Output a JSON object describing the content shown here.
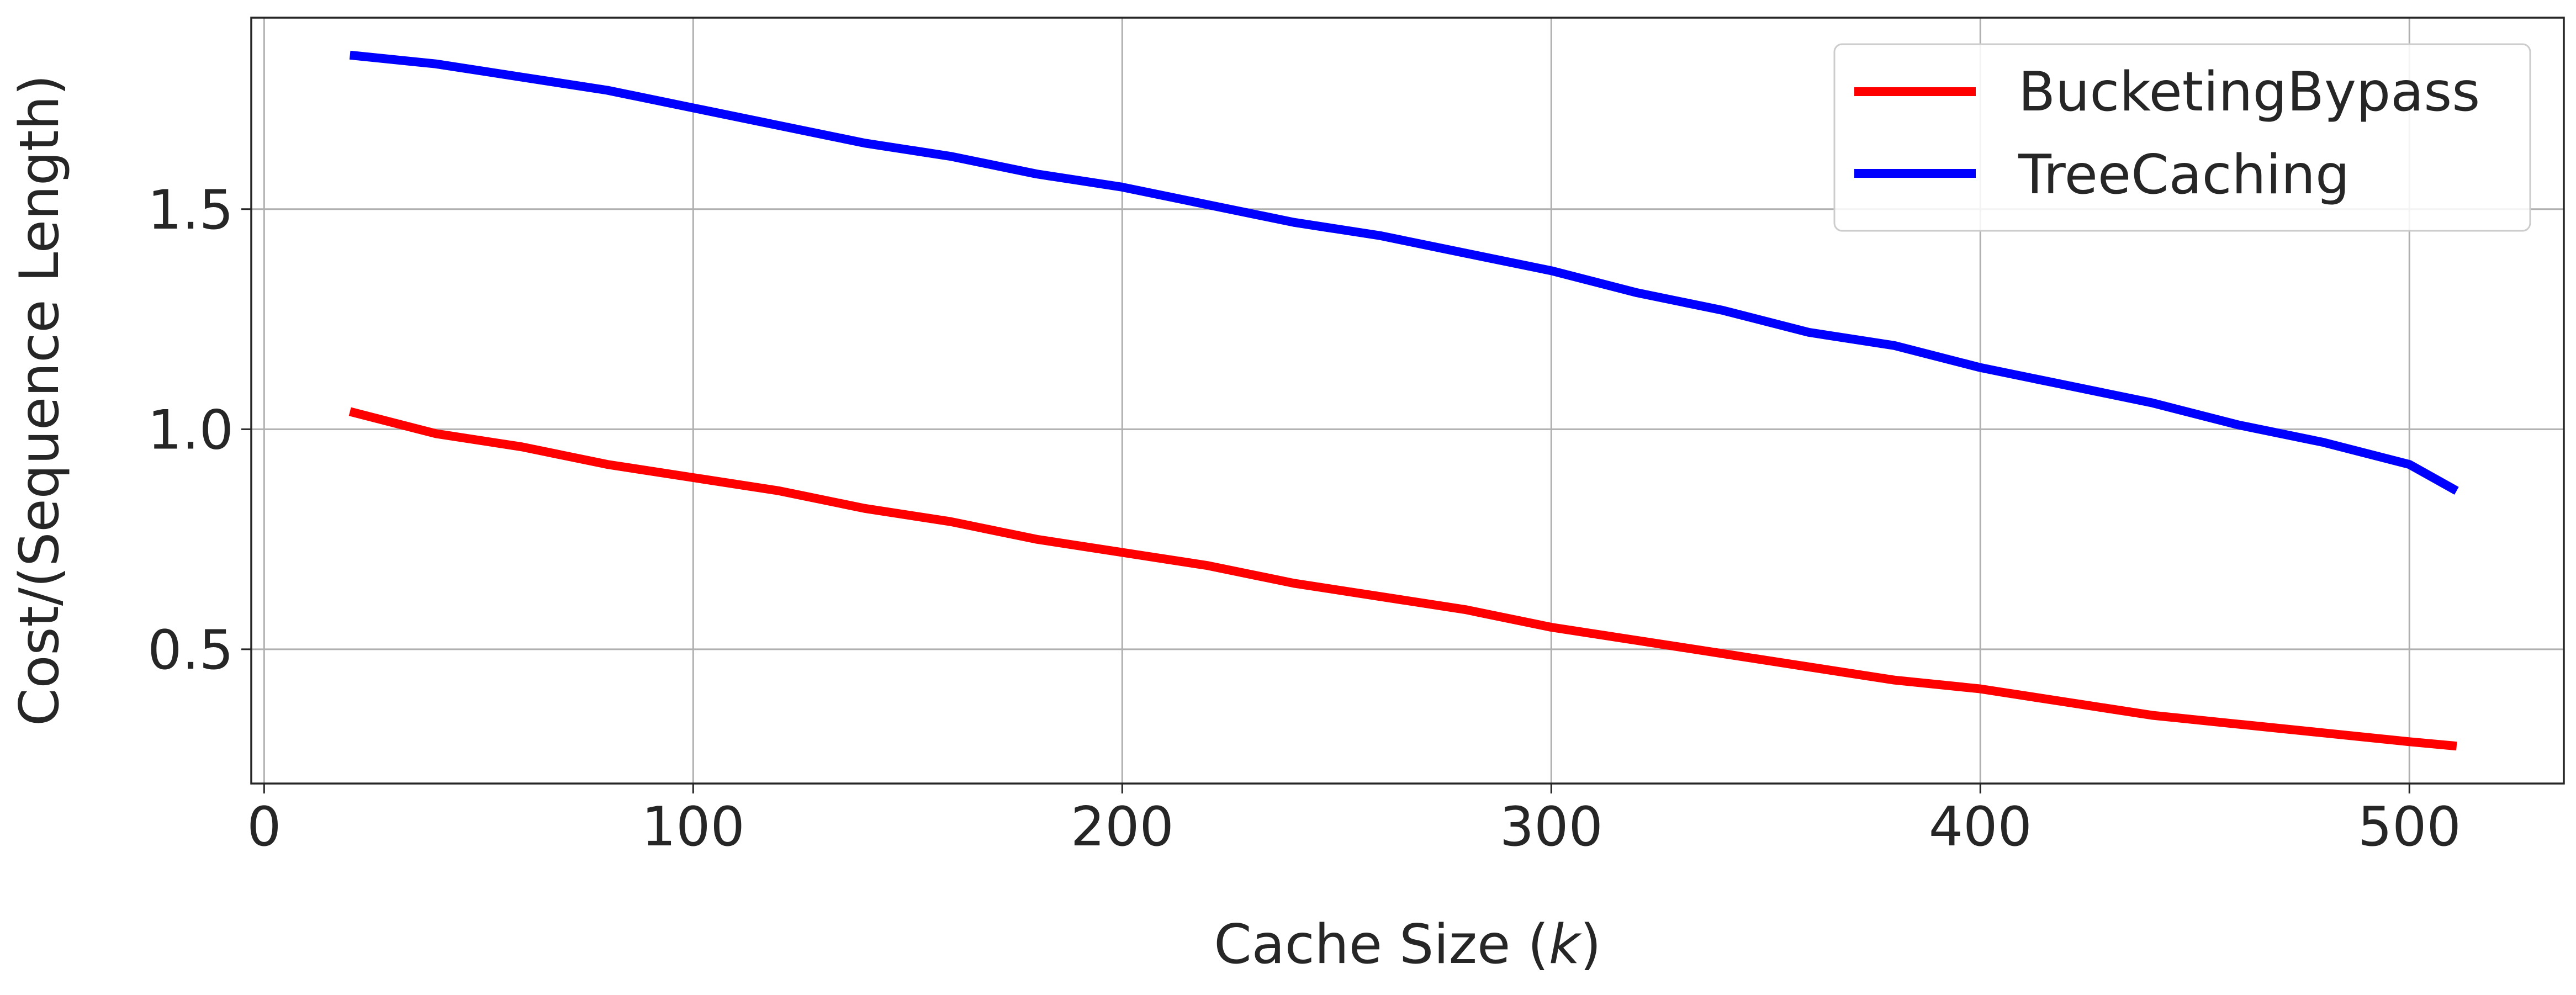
{
  "chart_data": {
    "type": "line",
    "title": "",
    "xlabel": "Cache Size",
    "xlabel_var": "k",
    "ylabel": "Cost/(Sequence Length)",
    "xlim": [
      -3,
      536
    ],
    "ylim": [
      0.195,
      1.935
    ],
    "xticks": [
      0,
      100,
      200,
      300,
      400,
      500
    ],
    "yticks": [
      0.5,
      1.0,
      1.5
    ],
    "xtick_labels": [
      "0",
      "100",
      "200",
      "300",
      "400",
      "500"
    ],
    "ytick_labels": [
      "0.5",
      "1.0",
      "1.5"
    ],
    "grid": true,
    "legend_position": "top-right",
    "series": [
      {
        "name": "BucketingBypass",
        "color": "#ff0000",
        "x": [
          20,
          40,
          60,
          80,
          100,
          120,
          140,
          160,
          180,
          200,
          220,
          240,
          260,
          280,
          300,
          320,
          340,
          360,
          380,
          400,
          420,
          440,
          460,
          480,
          500,
          511
        ],
        "y": [
          1.04,
          0.99,
          0.96,
          0.92,
          0.89,
          0.86,
          0.82,
          0.79,
          0.75,
          0.72,
          0.69,
          0.65,
          0.62,
          0.59,
          0.55,
          0.52,
          0.49,
          0.46,
          0.43,
          0.41,
          0.38,
          0.35,
          0.33,
          0.31,
          0.29,
          0.28
        ]
      },
      {
        "name": "TreeCaching",
        "color": "#0000ff",
        "x": [
          20,
          40,
          60,
          80,
          100,
          120,
          140,
          160,
          180,
          200,
          220,
          240,
          260,
          280,
          300,
          320,
          340,
          360,
          380,
          400,
          420,
          440,
          460,
          480,
          500,
          511
        ],
        "y": [
          1.85,
          1.83,
          1.8,
          1.77,
          1.73,
          1.69,
          1.65,
          1.62,
          1.58,
          1.55,
          1.51,
          1.47,
          1.44,
          1.4,
          1.36,
          1.31,
          1.27,
          1.22,
          1.19,
          1.14,
          1.1,
          1.06,
          1.01,
          0.97,
          0.92,
          0.86
        ]
      }
    ]
  }
}
